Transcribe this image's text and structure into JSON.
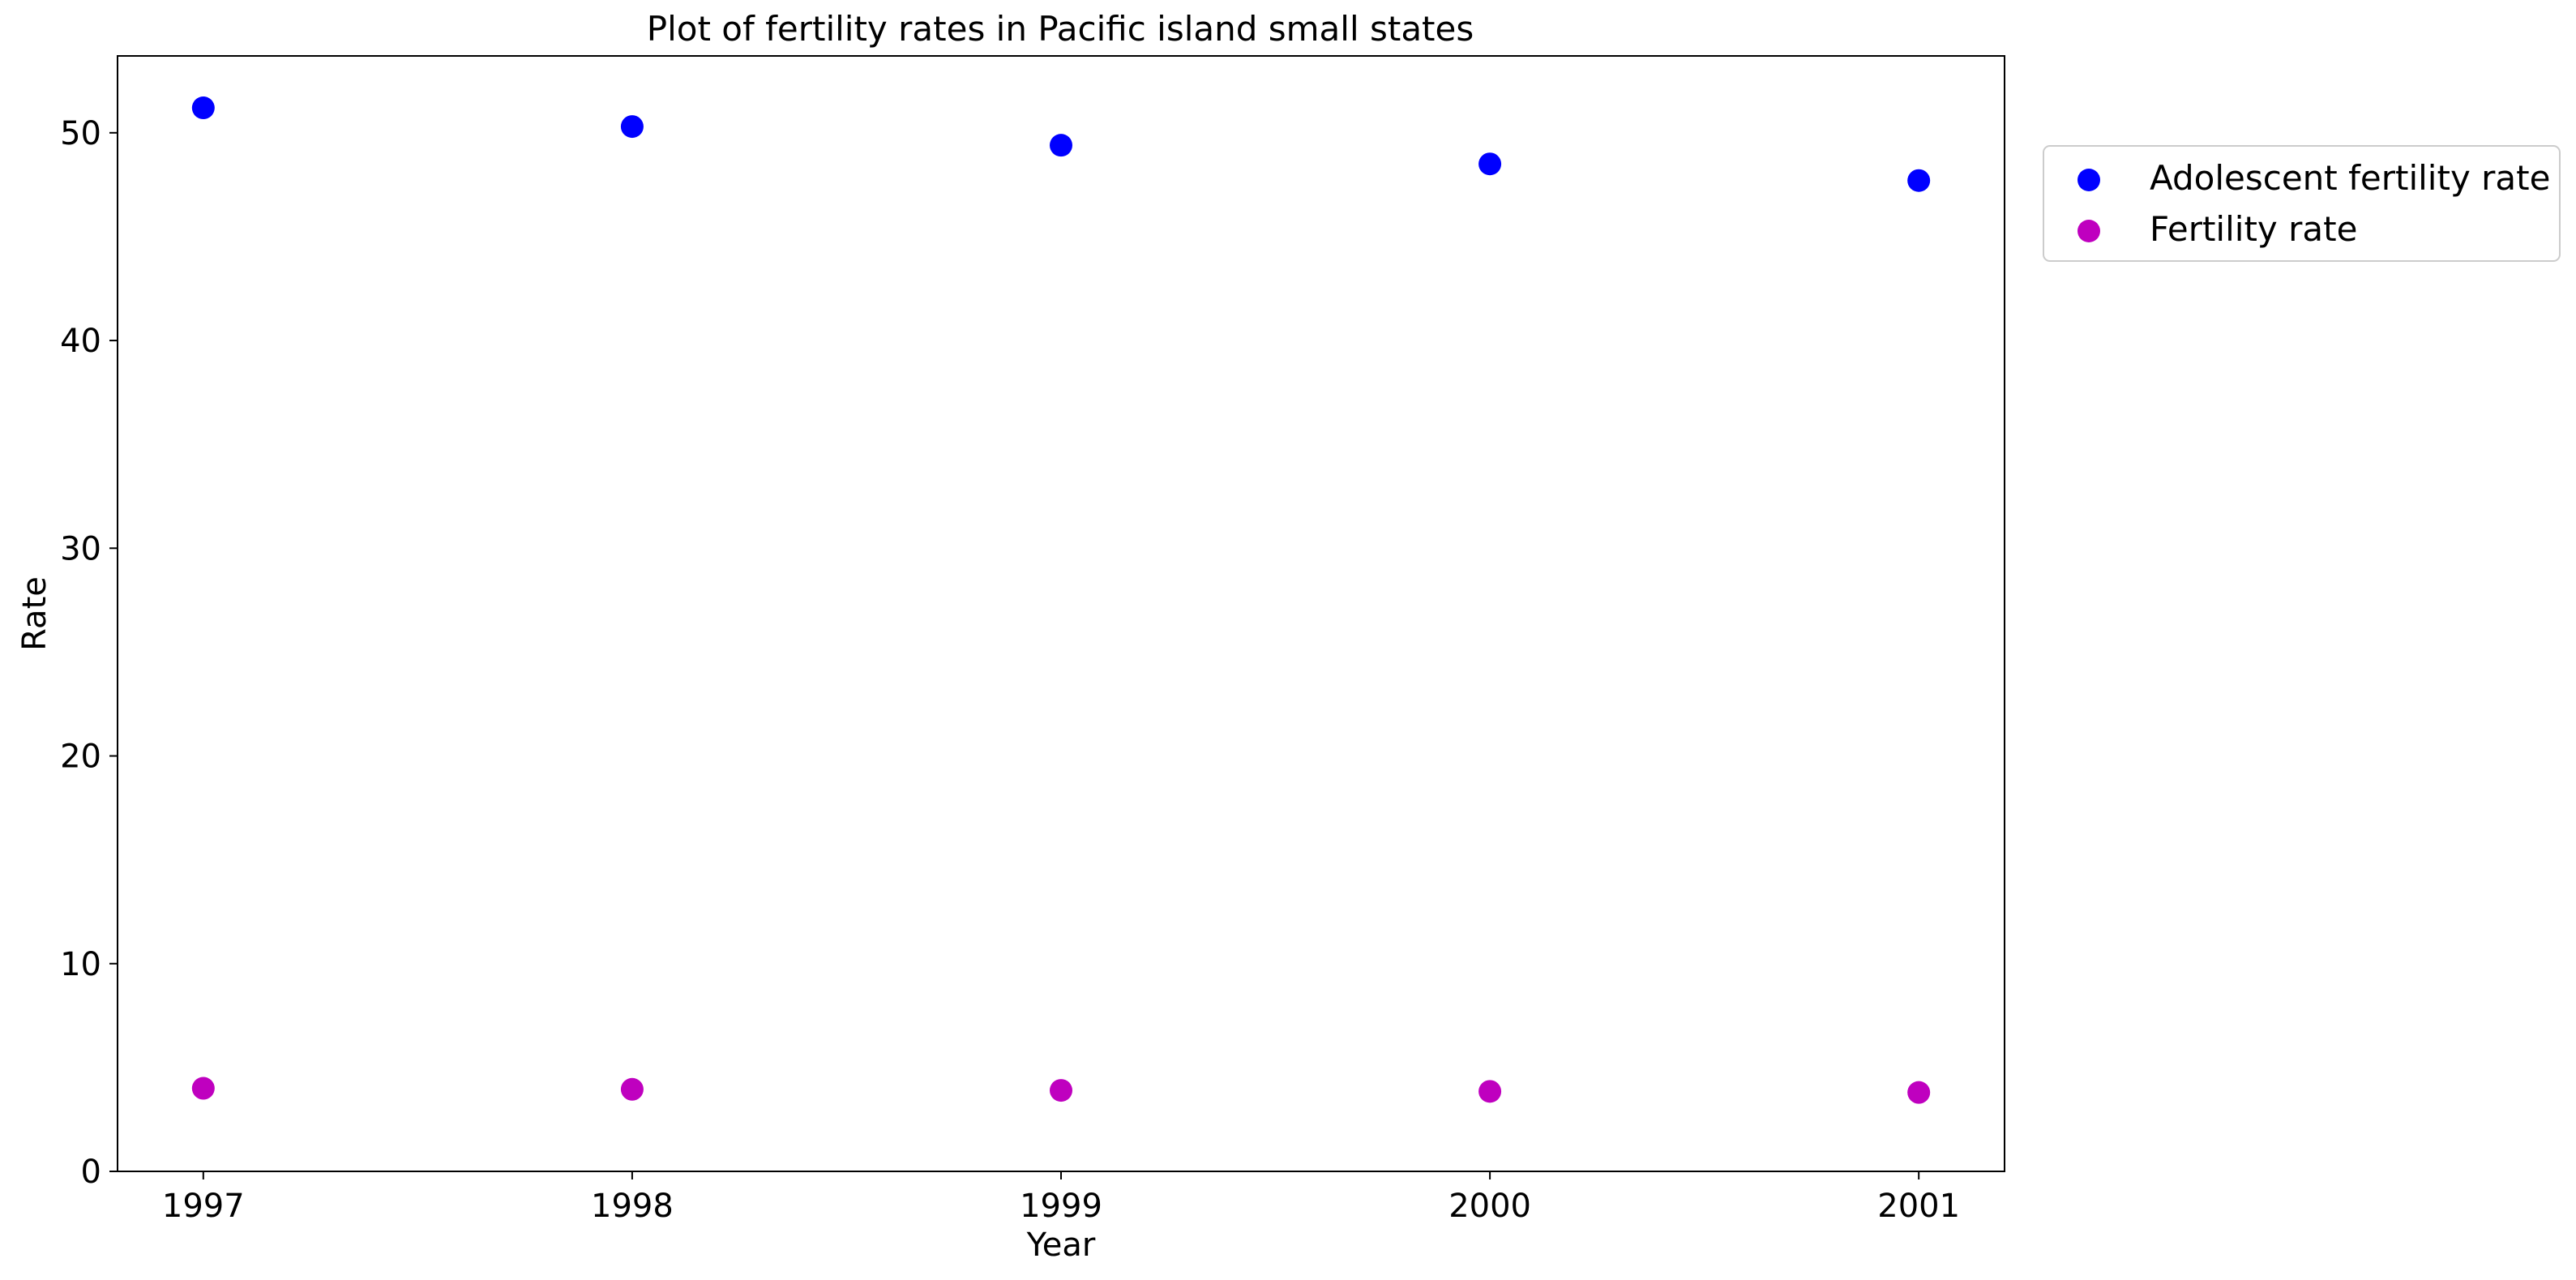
{
  "chart_data": {
    "type": "scatter",
    "title": "Plot of fertility rates in Pacific island small states",
    "xlabel": "Year",
    "ylabel": "Rate",
    "x": [
      1997,
      1998,
      1999,
      2000,
      2001
    ],
    "xlim": [
      1996.8,
      2001.2
    ],
    "ylim": [
      0,
      53.7
    ],
    "xticks": [
      "1997",
      "1998",
      "1999",
      "2000",
      "2001"
    ],
    "yticks": [
      "0",
      "10",
      "20",
      "30",
      "40",
      "50"
    ],
    "grid": false,
    "legend_position": "outside-right-top",
    "series": [
      {
        "name": "Adolescent fertility rate",
        "color": "#0000ff",
        "values": [
          51.2,
          50.3,
          49.4,
          48.5,
          47.7
        ]
      },
      {
        "name": "Fertility rate",
        "color": "#bf00bf",
        "values": [
          4.0,
          3.95,
          3.9,
          3.85,
          3.8
        ]
      }
    ]
  }
}
